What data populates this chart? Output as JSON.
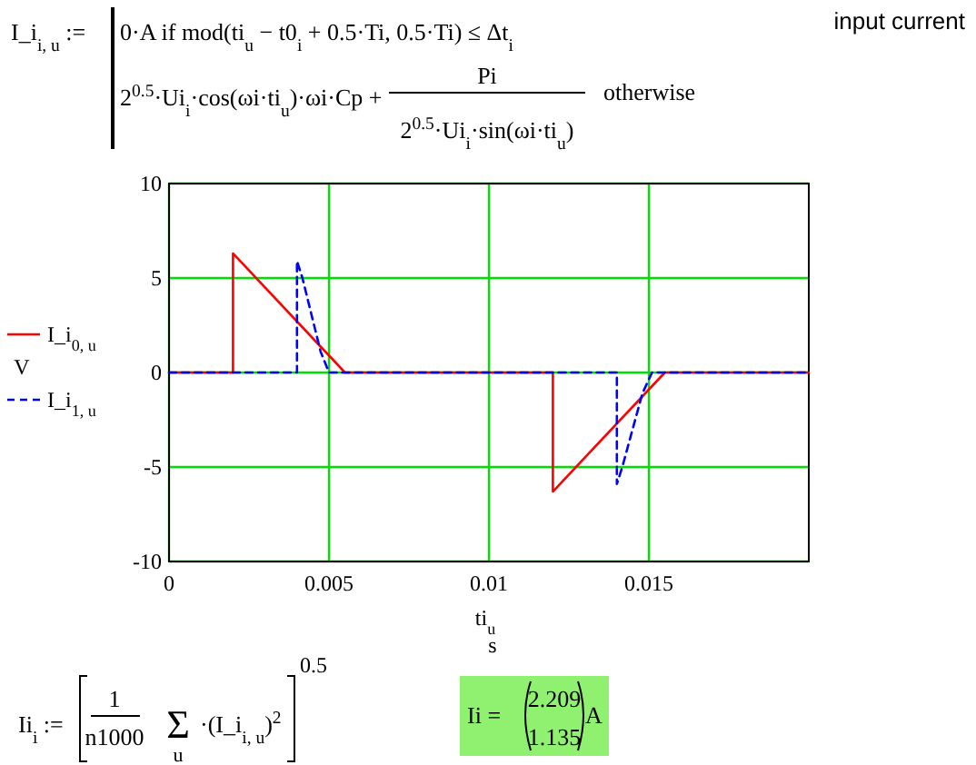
{
  "chart_data": {
    "type": "line",
    "ylabel": "V",
    "xlabel": "ti$_{u}$",
    "xlim": [
      0,
      0.02
    ],
    "ylim": [
      -10,
      10
    ],
    "xticks": [
      0,
      0.005,
      0.01,
      0.015
    ],
    "yticks": [
      -10,
      -5,
      0,
      5,
      10
    ],
    "grid": true,
    "legend": "left",
    "marker": "none",
    "series": [
      {
        "name": "I_i$_{0, u}$",
        "color": "#ff0000",
        "line_style": "solid",
        "x": [
          0,
          0.002,
          0.002,
          0.0055,
          0.012,
          0.012,
          0.0155,
          0.02
        ],
        "values": [
          0,
          0,
          6.3,
          0,
          0,
          -6.3,
          0,
          0
        ]
      },
      {
        "name": "I_i$_{1, u}$",
        "color": "#0000ff",
        "line_style": "dashed",
        "x": [
          0,
          0.004,
          0.004,
          0.00417,
          0.00474,
          0.005,
          0.014,
          0.014,
          0.01417,
          0.0148,
          0.0151,
          0.02
        ],
        "values": [
          0,
          0,
          5.9,
          5.0,
          1.1,
          0,
          0,
          -5.9,
          -5.0,
          -1.1,
          0,
          0
        ]
      }
    ],
    "annotations": [
      "I_i$_{i, u}$ :=",
      "0·A  if  mod(ti$_{u}$ − t0$_{i}$ + 0.5·Ti, 0.5·Ti) ≤ Δt$_{i}$",
      "2$^{0.5}$·Ui$_{i}$·cos(ωi·ti$_{u}$)·ωi·Cp +",
      "Pi",
      "2$^{0.5}$·Ui$_{i}$·sin(ωi·ti$_{u}$)",
      "otherwise",
      "input current",
      "Ii$_{i}$ :=",
      "1",
      "n1000",
      "Σ",
      "u",
      "·(I_i$_{i, u}$)$^{2}$",
      "0.5",
      "Ii =",
      "2.209",
      "1.135",
      "A",
      "s"
    ]
  }
}
